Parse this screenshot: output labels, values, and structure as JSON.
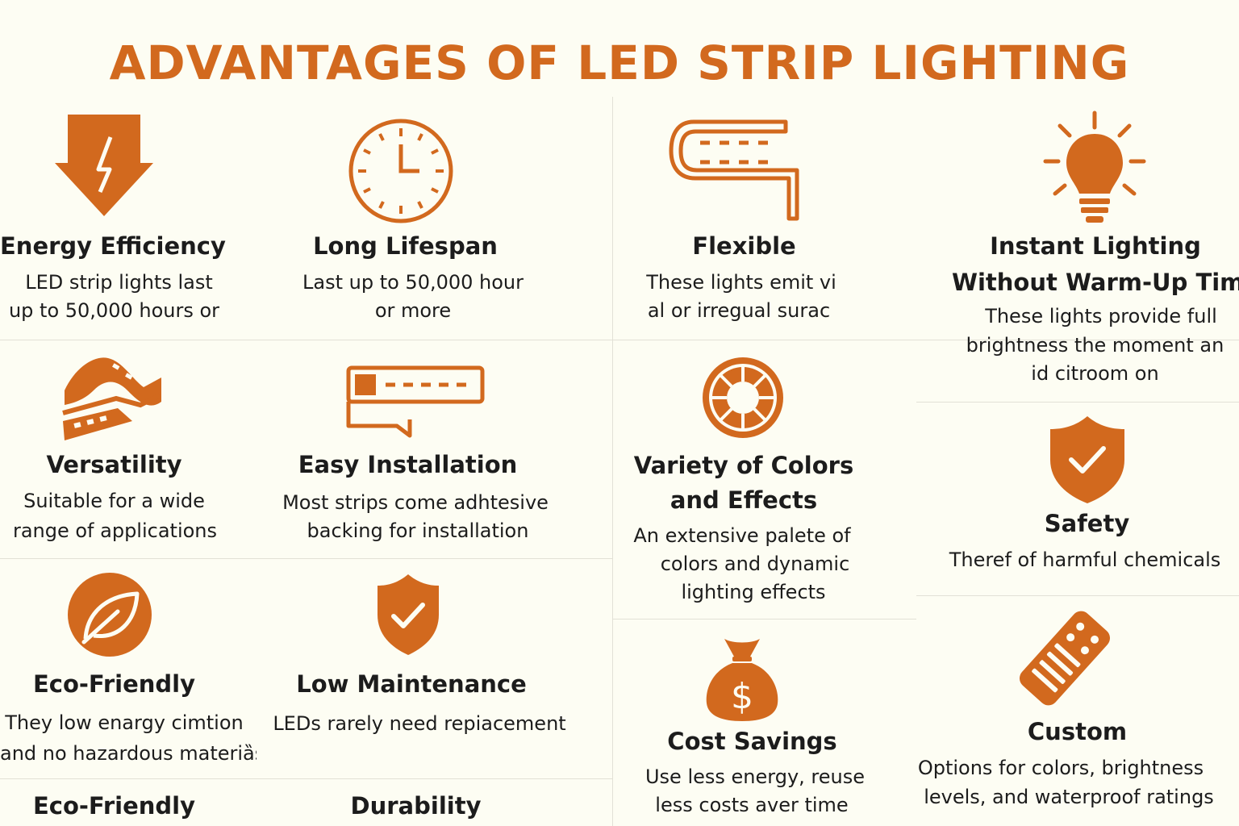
{
  "title": "ADVANTAGES OF LED STRIP LIGHTING",
  "accent_color": "#D2691E",
  "background_color": "#FDFDF3",
  "features": [
    {
      "icon": "lightning-arrow-icon",
      "heading": "Energy Efficiency",
      "desc_line1": "LED strip lights last",
      "desc_line2": "up to 50,000 hours or"
    },
    {
      "icon": "clock-icon",
      "heading": "Long Lifespan",
      "desc_line1": "Last up to 50,000 hour",
      "desc_line2": "or more"
    },
    {
      "icon": "flexible-strip-icon",
      "heading": "Flexible",
      "desc_line1": "These lights emit vi",
      "desc_line2": "al or irregual surac"
    },
    {
      "icon": "light-bulb-icon",
      "heading_line1": "Instant Lighting",
      "heading_line2": "Without Warm-Up Time",
      "desc_line1": "These lights provide full",
      "desc_line2": "brightness the moment an",
      "desc_line3": "id citroom on"
    },
    {
      "icon": "wavy-strip-icon",
      "heading": "Versatility",
      "desc_line1": "Suitable for a wide",
      "desc_line2": "range of applications"
    },
    {
      "icon": "led-strip-icon",
      "heading": "Easy Installation",
      "desc_line1": "Most strips come adhtesive",
      "desc_line2": "backing for installation"
    },
    {
      "icon": "color-wheel-icon",
      "heading_line1": "Variety of Colors",
      "heading_line2": "and Effects",
      "desc_line1": "An extensive palete of",
      "desc_line2": "colors and dynamic",
      "desc_line3": "lighting effects"
    },
    {
      "icon": "shield-check-icon",
      "heading": "Safety",
      "desc_line1": "Theref of harmful chemicals"
    },
    {
      "icon": "leaf-icon",
      "heading": "Eco-Friendly",
      "desc_line1": "They low enargy cimtion",
      "desc_line2": "and no hazardous materiȁs"
    },
    {
      "icon": "shield-check-icon",
      "heading": "Low Maintenance",
      "desc_line1": "LEDs rarely need repiacement"
    },
    {
      "icon": "money-bag-icon",
      "heading": "Cost Savings",
      "desc_line1": "Use less energy, reuse",
      "desc_line2": "less costs aver time"
    },
    {
      "icon": "remote-control-icon",
      "heading": "Custom",
      "desc_line1": "Options for colors, brightness",
      "desc_line2": "levels, and waterproof ratings"
    }
  ],
  "footer": {
    "left": "Eco-Friendly",
    "middle": "Durability"
  }
}
